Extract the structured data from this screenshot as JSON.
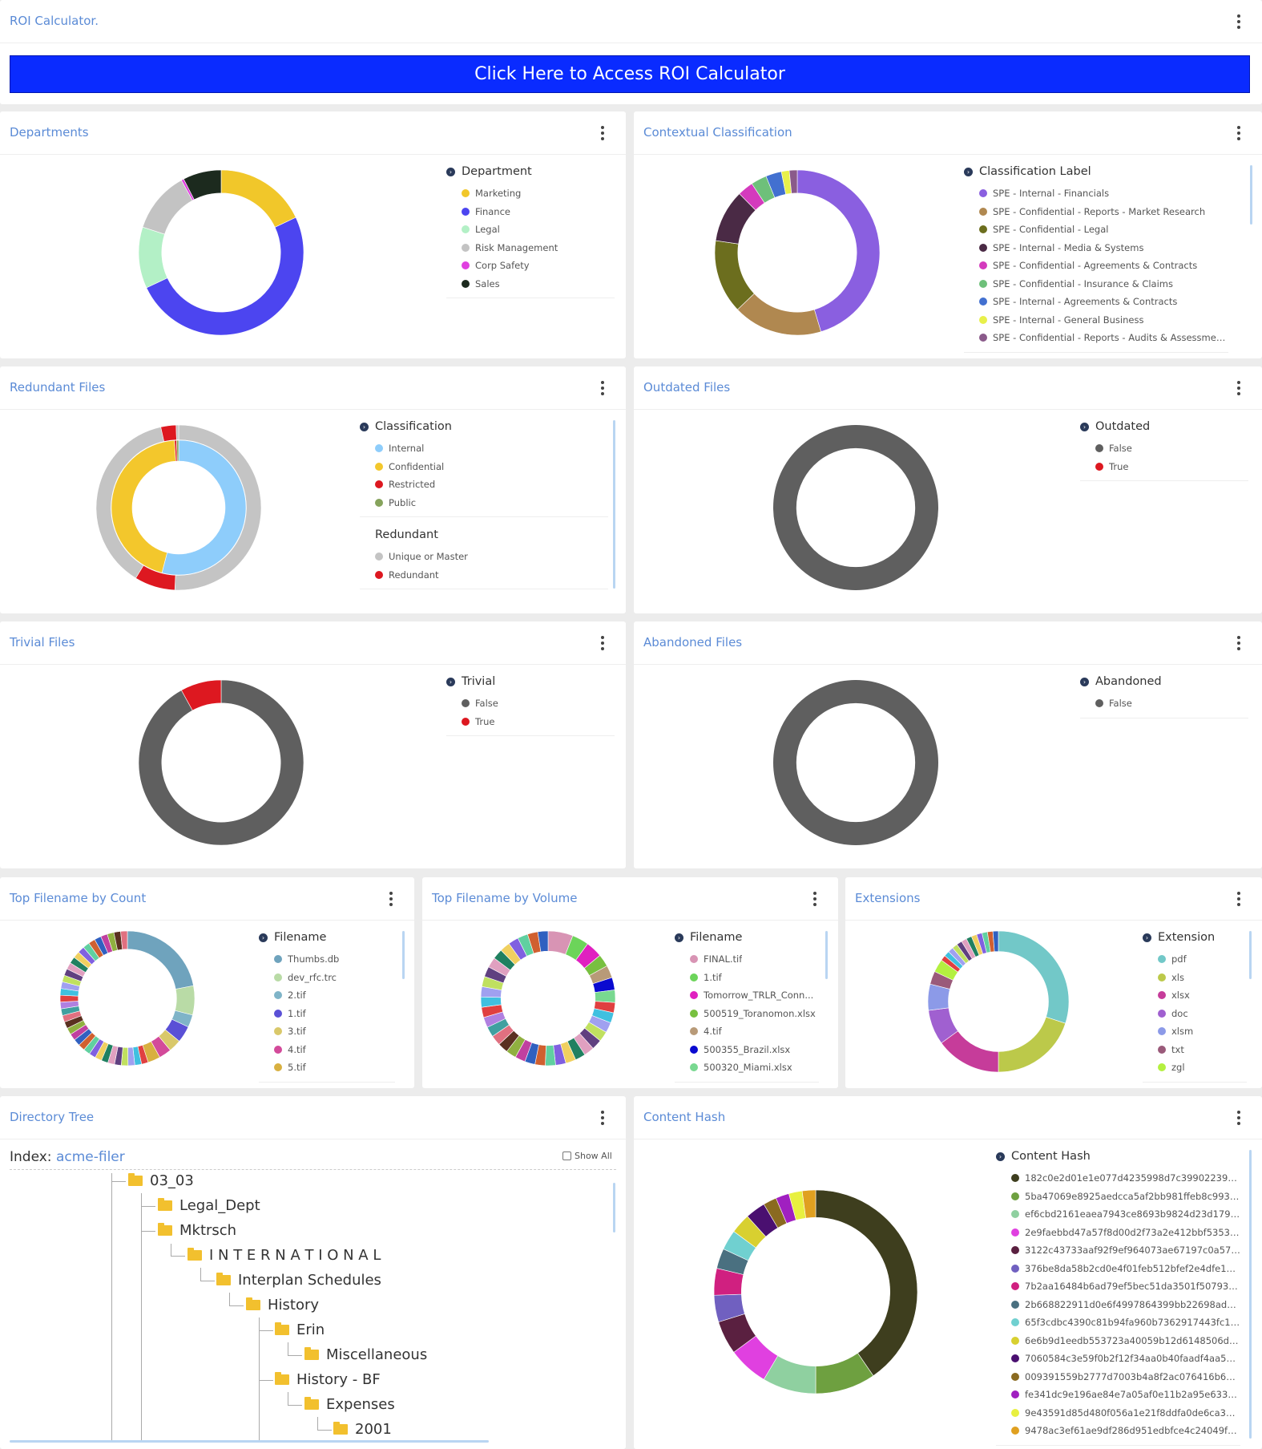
{
  "roi": {
    "title": "ROI Calculator.",
    "button_label": "Click Here to Access ROI Calculator"
  },
  "departments": {
    "title": "Departments",
    "legend_title": "Department",
    "items": [
      {
        "label": "Marketing",
        "color": "#f1c72a"
      },
      {
        "label": "Finance",
        "color": "#4c45f0"
      },
      {
        "label": "Legal",
        "color": "#b3f0c6"
      },
      {
        "label": "Risk Management",
        "color": "#c3c3c3"
      },
      {
        "label": "Corp Safety",
        "color": "#e040e0"
      },
      {
        "label": "Sales",
        "color": "#1c2a1e"
      }
    ]
  },
  "contextual": {
    "title": "Contextual Classification",
    "legend_title": "Classification Label",
    "items": [
      {
        "label": "SPE - Internal - Financials",
        "color": "#8a5fe0"
      },
      {
        "label": "SPE - Confidential - Reports - Market Research",
        "color": "#b08850"
      },
      {
        "label": "SPE - Confidential - Legal",
        "color": "#6c6e1e"
      },
      {
        "label": "SPE - Internal - Media & Systems",
        "color": "#4a2a45"
      },
      {
        "label": "SPE - Confidential - Agreements & Contracts",
        "color": "#d43bbd"
      },
      {
        "label": "SPE - Confidential - Insurance & Claims",
        "color": "#6ec07a"
      },
      {
        "label": "SPE - Internal - Agreements & Contracts",
        "color": "#4270d0"
      },
      {
        "label": "SPE - Internal - General Business",
        "color": "#e8f04a"
      },
      {
        "label": "SPE - Confidential - Reports - Audits & Assessments",
        "color": "#8a5a8a"
      }
    ]
  },
  "redundant": {
    "title": "Redundant Files",
    "legend_title": "Classification",
    "items": [
      {
        "label": "Internal",
        "color": "#8ecdfb"
      },
      {
        "label": "Confidential",
        "color": "#f3c72c"
      },
      {
        "label": "Restricted",
        "color": "#dd1820"
      },
      {
        "label": "Public",
        "color": "#86a35c"
      }
    ],
    "legend_title2": "Redundant",
    "items2": [
      {
        "label": "Unique or Master",
        "color": "#c4c4c4"
      },
      {
        "label": "Redundant",
        "color": "#dd1820"
      }
    ]
  },
  "outdated": {
    "title": "Outdated Files",
    "legend_title": "Outdated",
    "items": [
      {
        "label": "False",
        "color": "#5f5f5f"
      },
      {
        "label": "True",
        "color": "#dd1820"
      }
    ]
  },
  "trivial": {
    "title": "Trivial Files",
    "legend_title": "Trivial",
    "items": [
      {
        "label": "False",
        "color": "#5f5f5f"
      },
      {
        "label": "True",
        "color": "#dd1820"
      }
    ]
  },
  "abandoned": {
    "title": "Abandoned Files",
    "legend_title": "Abandoned",
    "items": [
      {
        "label": "False",
        "color": "#5f5f5f"
      }
    ]
  },
  "topcount": {
    "title": "Top Filename by Count",
    "legend_title": "Filename",
    "items": [
      {
        "label": "Thumbs.db",
        "color": "#6fa3bd"
      },
      {
        "label": "dev_rfc.trc",
        "color": "#b9dba6"
      },
      {
        "label": "2.tif",
        "color": "#7fb4c8"
      },
      {
        "label": "1.tif",
        "color": "#5a50d6"
      },
      {
        "label": "3.tif",
        "color": "#d9c86a"
      },
      {
        "label": "4.tif",
        "color": "#d34a9a"
      },
      {
        "label": "5.tif",
        "color": "#d8b040"
      }
    ]
  },
  "topvolume": {
    "title": "Top Filename by Volume",
    "legend_title": "Filename",
    "items": [
      {
        "label": "FINAL.tif",
        "color": "#d894b4"
      },
      {
        "label": "1.tif",
        "color": "#6cd45a"
      },
      {
        "label": "Tomorrow_TRLR_Conn...",
        "color": "#e020c0"
      },
      {
        "label": "500519_Toranomon.xlsx",
        "color": "#78c040"
      },
      {
        "label": "4.tif",
        "color": "#b89a78"
      },
      {
        "label": "500355_Brazil.xlsx",
        "color": "#0a0ad0"
      },
      {
        "label": "500320_Miami.xlsx",
        "color": "#78d890"
      }
    ]
  },
  "extensions": {
    "title": "Extensions",
    "legend_title": "Extension",
    "items": [
      {
        "label": "pdf",
        "color": "#72c8c8"
      },
      {
        "label": "xls",
        "color": "#bcc94a"
      },
      {
        "label": "xlsx",
        "color": "#c63c9a"
      },
      {
        "label": "doc",
        "color": "#a060d0"
      },
      {
        "label": "xlsm",
        "color": "#8c9ae8"
      },
      {
        "label": "txt",
        "color": "#9a5a7a"
      },
      {
        "label": "zgl",
        "color": "#b4f040"
      }
    ]
  },
  "directory": {
    "title": "Directory Tree",
    "index_label": "Index:",
    "index_value": "acme-filer",
    "show_all": "Show All",
    "nodes": [
      "03_03",
      "Legal_Dept",
      "Mktrsch",
      "I N T E R N A T I O N A L",
      "Interplan Schedules",
      "History",
      "Erin",
      "Miscellaneous",
      "History - BF",
      "Expenses",
      "2001"
    ]
  },
  "contenthash": {
    "title": "Content Hash",
    "legend_title": "Content Hash",
    "items": [
      {
        "label": "182c0e2d01e1e077d4235998d7c3990223953...",
        "color": "#3e3e1e"
      },
      {
        "label": "5ba47069e8925aedcca5af2bb981ffeb8c9939...",
        "color": "#6ea040"
      },
      {
        "label": "ef6cbd2161eaea7943ce8693b9824d23d1793...",
        "color": "#8fd0a0"
      },
      {
        "label": "2e9faebbd47a57f8d00d2f73a2e412bbf5353a...",
        "color": "#e040e0"
      },
      {
        "label": "3122c43733aaf92f9ef964073ae67197c0a570...",
        "color": "#5a2040"
      },
      {
        "label": "376be8da58b2cd0e4f01feb512bfef2e4dfe11...",
        "color": "#7060c0"
      },
      {
        "label": "7b2aa16484b6ad79ef5bec51da3501f507936...",
        "color": "#d02080"
      },
      {
        "label": "2b668822911d0e6f4997864399bb22698ad8c...",
        "color": "#4a7080"
      },
      {
        "label": "65f3cdbc4390c81b94fa960b7362917443fc1e...",
        "color": "#70d0d0"
      },
      {
        "label": "6e6b9d1eedb553723a40059b12d6148506db...",
        "color": "#d8d030"
      },
      {
        "label": "7060584c3e59f0b2f12f34aa0b40faadf4aa579...",
        "color": "#4a1070"
      },
      {
        "label": "009391559b2777d7003b4a8f2ac076416b66e...",
        "color": "#8a6a20"
      },
      {
        "label": "fe341dc9e196ae84e7a05af0e11b2a95e6333...",
        "color": "#a020c0"
      },
      {
        "label": "9e43591d85d480f056a1e21f8ddfa0de6ca3a3...",
        "color": "#e8f040"
      },
      {
        "label": "9478ac3ef61ae9df286d951edbfce4c24049f6...",
        "color": "#e0a020"
      }
    ]
  },
  "chart_data": [
    {
      "type": "pie",
      "id": "departments",
      "labels": [
        "Marketing",
        "Finance",
        "Legal",
        "Risk Management",
        "Corp Safety",
        "Sales"
      ],
      "values": [
        18,
        50,
        12,
        12,
        0.5,
        7.5
      ],
      "colors": [
        "#f1c72a",
        "#4c45f0",
        "#b3f0c6",
        "#c3c3c3",
        "#e040e0",
        "#1c2a1e"
      ]
    },
    {
      "type": "pie",
      "id": "contextual",
      "labels": [
        "SPE - Internal - Financials",
        "SPE - Confidential - Reports - Market Research",
        "SPE - Confidential - Legal",
        "SPE - Internal - Media & Systems",
        "SPE - Confidential - Agreements & Contracts",
        "SPE - Confidential - Insurance & Claims",
        "SPE - Internal - Agreements & Contracts",
        "SPE - Internal - General Business",
        "SPE - Confidential - Reports - Audits & Assessments"
      ],
      "values": [
        44,
        17,
        14,
        10,
        3,
        3,
        3,
        1.5,
        1.5
      ],
      "colors": [
        "#8a5fe0",
        "#b08850",
        "#6c6e1e",
        "#4a2a45",
        "#d43bbd",
        "#6ec07a",
        "#4270d0",
        "#e8f04a",
        "#8a5a8a"
      ]
    },
    {
      "type": "pie",
      "id": "redundant-inner",
      "labels": [
        "Internal",
        "Confidential",
        "Restricted",
        "Public"
      ],
      "values": [
        54,
        45,
        0.5,
        0.5
      ],
      "colors": [
        "#8ecdfb",
        "#f3c72c",
        "#dd1820",
        "#86a35c"
      ]
    },
    {
      "type": "pie",
      "id": "redundant-outer",
      "labels": [
        "Unique or Master",
        "Redundant",
        "Unique or Master",
        "Redundant",
        "Unique or Master"
      ],
      "values": [
        51,
        8,
        38,
        3,
        0.5
      ],
      "colors": [
        "#c4c4c4",
        "#dd1820",
        "#c4c4c4",
        "#dd1820",
        "#c4c4c4"
      ]
    },
    {
      "type": "pie",
      "id": "outdated",
      "labels": [
        "False",
        "True"
      ],
      "values": [
        100,
        0
      ],
      "colors": [
        "#5f5f5f",
        "#dd1820"
      ]
    },
    {
      "type": "pie",
      "id": "trivial",
      "labels": [
        "False",
        "True"
      ],
      "values": [
        92,
        8
      ],
      "colors": [
        "#5f5f5f",
        "#dd1820"
      ]
    },
    {
      "type": "pie",
      "id": "abandoned",
      "labels": [
        "False"
      ],
      "values": [
        100
      ],
      "colors": [
        "#5f5f5f"
      ]
    },
    {
      "type": "pie",
      "id": "topcount",
      "labels": [
        "Thumbs.db",
        "dev_rfc.trc",
        "2.tif",
        "1.tif",
        "3.tif",
        "4.tif",
        "5.tif"
      ],
      "values": [
        22,
        7,
        3,
        4,
        3,
        3,
        3
      ],
      "colors": [
        "#6fa3bd",
        "#b9dba6",
        "#7fb4c8",
        "#5a50d6",
        "#d9c86a",
        "#d34a9a",
        "#d8b040"
      ]
    },
    {
      "type": "pie",
      "id": "topvolume",
      "labels": [
        "FINAL.tif",
        "1.tif",
        "Tomorrow_TRLR_Conn...",
        "500519_Toranomon.xlsx",
        "4.tif",
        "500355_Brazil.xlsx",
        "500320_Miami.xlsx"
      ],
      "values": [
        6,
        4,
        4,
        3,
        3,
        3,
        3
      ],
      "colors": [
        "#d894b4",
        "#6cd45a",
        "#e020c0",
        "#78c040",
        "#b89a78",
        "#0a0ad0",
        "#78d890"
      ]
    },
    {
      "type": "pie",
      "id": "extensions",
      "labels": [
        "pdf",
        "xls",
        "xlsx",
        "doc",
        "xlsm",
        "txt",
        "zgl"
      ],
      "values": [
        30,
        20,
        15,
        8,
        6,
        3,
        3
      ],
      "colors": [
        "#72c8c8",
        "#bcc94a",
        "#c63c9a",
        "#a060d0",
        "#8c9ae8",
        "#9a5a7a",
        "#b4f040"
      ]
    },
    {
      "type": "pie",
      "id": "contenthash",
      "labels": [
        "182c0e2d01e1e077d4235998d7c3990223953...",
        "5ba47069e8925aedcca5af2bb981ffeb8c9939...",
        "ef6cbd2161eaea7943ce8693b9824d23d1793...",
        "2e9faebbd47a57f8d00d2f73a2e412bbf5353a...",
        "3122c43733aaf92f9ef964073ae67197c0a570...",
        "376be8da58b2cd0e4f01feb512bfef2e4dfe11...",
        "7b2aa16484b6ad79ef5bec51da3501f507936...",
        "2b668822911d0e6f4997864399bb22698ad8c...",
        "65f3cdbc4390c81b94fa960b7362917443fc1e...",
        "6e6b9d1eedb553723a40059b12d6148506db...",
        "7060584c3e59f0b2f12f34aa0b40faadf4aa579...",
        "009391559b2777d7003b4a8f2ac076416b66e...",
        "fe341dc9e196ae84e7a05af0e11b2a95e6333...",
        "9e43591d85d480f056a1e21f8ddfa0de6ca3a3...",
        "9478ac3ef61ae9df286d951edbfce4c24049f6..."
      ],
      "values": [
        38,
        9,
        8,
        6,
        5,
        4,
        4,
        3,
        3,
        3,
        3,
        2,
        2,
        2,
        2
      ],
      "colors": [
        "#3e3e1e",
        "#6ea040",
        "#8fd0a0",
        "#e040e0",
        "#5a2040",
        "#7060c0",
        "#d02080",
        "#4a7080",
        "#70d0d0",
        "#d8d030",
        "#4a1070",
        "#8a6a20",
        "#a020c0",
        "#e8f040",
        "#e0a020"
      ]
    }
  ]
}
